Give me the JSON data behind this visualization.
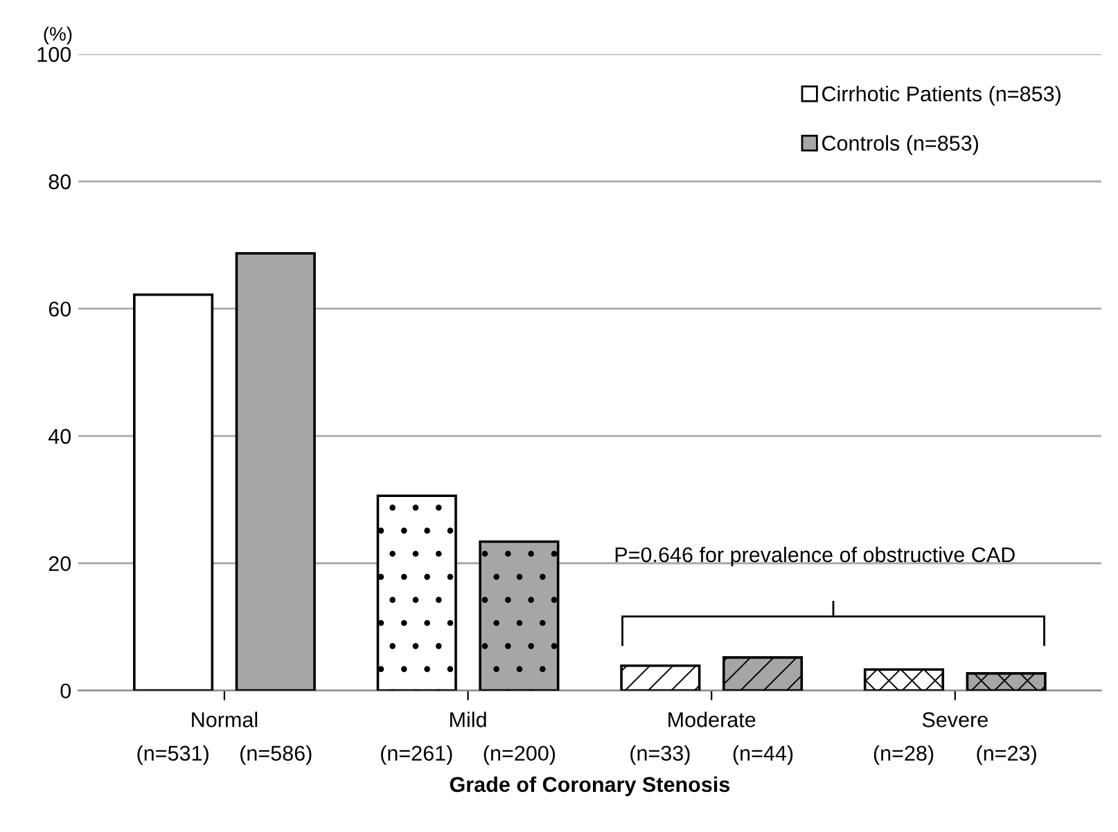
{
  "chart_data": {
    "type": "bar",
    "ylabel": "(%)",
    "xlabel": "Grade of Coronary Stenosis",
    "categories": [
      "Normal\n(n=531)     (n=586)",
      "Mild\n(n=261)     (n=200)",
      "Moderate\n(n=33)       (n=44)",
      "Severe\n(n=28)       (n=23)"
    ],
    "series": [
      {
        "name": "Cirrhotic Patients (n=853)",
        "color": "#ffffff",
        "values": [
          62.2,
          30.6,
          3.9,
          3.3
        ]
      },
      {
        "name": "Controls (n=853)",
        "color": "#a6a6a6",
        "values": [
          68.7,
          23.4,
          5.2,
          2.7
        ]
      }
    ],
    "ylim": [
      0,
      100
    ],
    "yticks": [
      0,
      20,
      40,
      60,
      80,
      100
    ],
    "grid": "y",
    "legend": "top right",
    "annotations": [
      "P=0.646 for prevalence of obstructive CAD"
    ]
  }
}
